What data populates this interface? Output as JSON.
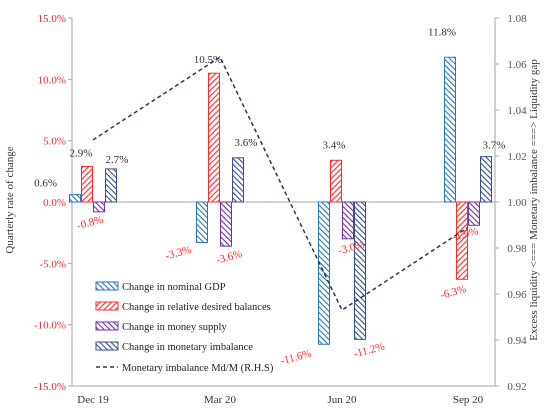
{
  "chart_data": {
    "type": "bar",
    "categories": [
      "Dec 19",
      "Mar 20",
      "Jun 20",
      "Sep 20"
    ],
    "ylabel": "Quarterly rate of change",
    "ylabel_right": "Excess liquidity <=== Monetary imbalance ===> Liquidity gap",
    "ylim": [
      -0.15,
      0.15
    ],
    "ylim_right": [
      0.92,
      1.08
    ],
    "yticks": [
      "15.0%",
      "10.0%",
      "5.0%",
      "0.0%",
      "-5.0%",
      "-10.0%",
      "-15.0%"
    ],
    "yticks_right": [
      "1.08",
      "1.06",
      "1.04",
      "1.02",
      "1.00",
      "0.98",
      "0.96",
      "0.94",
      "0.92"
    ],
    "series": [
      {
        "name": "Change in nominal GDP",
        "color": "#2e75b6",
        "pattern": "hatch-blue",
        "values": [
          0.006,
          -0.033,
          -0.116,
          0.118
        ],
        "labels": [
          "0.6%",
          "-3.3%",
          "-11.6%",
          "11.8%"
        ]
      },
      {
        "name": "Change in relative desired balances",
        "color": "#ff2a2a",
        "pattern": "hatch-red",
        "values": [
          0.029,
          0.105,
          0.034,
          -0.063
        ],
        "labels": [
          "2.9%",
          "10.5%",
          "3.4%",
          "-6.3%"
        ]
      },
      {
        "name": "Change in money supply",
        "color": "#7030a0",
        "pattern": "hatch-purple",
        "values": [
          -0.008,
          -0.036,
          -0.03,
          -0.019
        ],
        "labels": [
          "-0.8%",
          "-3.6%",
          "-3.0%",
          "-1.9%"
        ]
      },
      {
        "name": "Change in monetary imbalance",
        "color": "#3b4f8a",
        "pattern": "hatch-navy",
        "values": [
          0.027,
          0.036,
          -0.112,
          0.037
        ],
        "labels": [
          "2.7%",
          "3.6%",
          "-11.2%",
          "3.7%"
        ]
      }
    ],
    "line_series": {
      "name": "Monetary imbalance Md/M (R.H.S)",
      "color": "#1f3864",
      "axis": "right",
      "style": "dashed",
      "x": [
        "Dec 19",
        "Mar 20",
        "Jun 20",
        "Sep 20"
      ],
      "values": [
        1.027,
        1.063,
        0.953,
        0.989
      ]
    },
    "legend_placement": "bottom-left",
    "grid": false
  }
}
